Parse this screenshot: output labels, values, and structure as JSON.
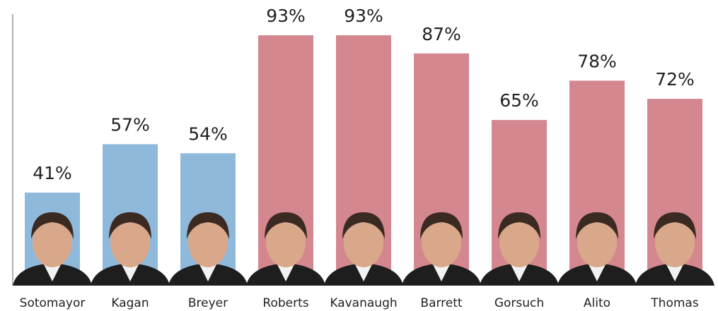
{
  "chart_data": {
    "type": "bar",
    "categories": [
      "Sotomayor",
      "Kagan",
      "Breyer",
      "Roberts",
      "Kavanaugh",
      "Barrett",
      "Gorsuch",
      "Alito",
      "Thomas"
    ],
    "values": [
      41,
      57,
      54,
      93,
      93,
      87,
      65,
      78,
      72
    ],
    "value_labels": [
      "41%",
      "57%",
      "54%",
      "93%",
      "93%",
      "87%",
      "65%",
      "78%",
      "72%"
    ],
    "colors": [
      "#8fb9da",
      "#8fb9da",
      "#8fb9da",
      "#d4878f",
      "#d4878f",
      "#d4878f",
      "#d4878f",
      "#d4878f",
      "#d4878f"
    ]
  }
}
